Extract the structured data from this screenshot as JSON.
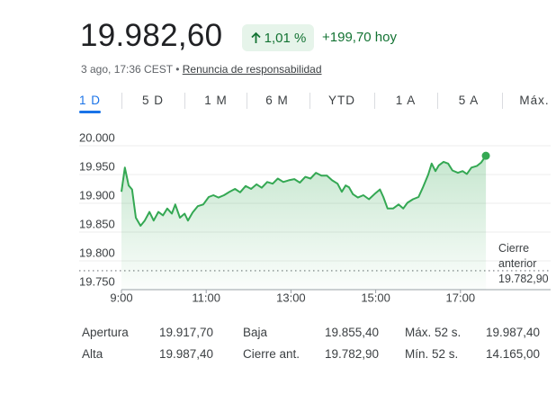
{
  "header": {
    "price": "19.982,60",
    "change_percent": "1,01 %",
    "change_abs": "+199,70 hoy",
    "timestamp": "3 ago, 17:36 CEST",
    "disclaimer": "Renuncia de responsabilidad"
  },
  "tabs": {
    "items": [
      "1 D",
      "5 D",
      "1 M",
      "6 M",
      "YTD",
      "1 A",
      "5 A",
      "Máx."
    ],
    "selected": 0
  },
  "chart_data": {
    "type": "line",
    "color": "#34a853",
    "x": [
      9.0,
      9.08,
      9.17,
      9.25,
      9.34,
      9.45,
      9.55,
      9.66,
      9.76,
      9.87,
      9.98,
      10.08,
      10.19,
      10.27,
      10.38,
      10.49,
      10.57,
      10.68,
      10.8,
      10.93,
      11.06,
      11.17,
      11.29,
      11.42,
      11.55,
      11.68,
      11.8,
      11.93,
      12.06,
      12.19,
      12.31,
      12.44,
      12.57,
      12.69,
      12.82,
      12.95,
      13.08,
      13.21,
      13.34,
      13.46,
      13.59,
      13.72,
      13.85,
      13.97,
      14.1,
      14.2,
      14.29,
      14.37,
      14.46,
      14.58,
      14.71,
      14.84,
      14.97,
      15.1,
      15.18,
      15.28,
      15.41,
      15.54,
      15.65,
      15.75,
      15.88,
      16.01,
      16.11,
      16.24,
      16.32,
      16.41,
      16.49,
      16.6,
      16.71,
      16.81,
      16.94,
      17.05,
      17.15,
      17.26,
      17.39,
      17.49,
      17.6
    ],
    "values": [
      19920,
      19962,
      19931,
      19924,
      19875,
      19861,
      19870,
      19885,
      19870,
      19885,
      19879,
      19891,
      19882,
      19898,
      19875,
      19882,
      19870,
      19884,
      19895,
      19898,
      19911,
      19914,
      19910,
      19914,
      19920,
      19925,
      19919,
      19930,
      19925,
      19933,
      19927,
      19937,
      19934,
      19943,
      19937,
      19940,
      19942,
      19936,
      19946,
      19943,
      19953,
      19948,
      19948,
      19940,
      19934,
      19920,
      19931,
      19928,
      19916,
      19910,
      19914,
      19907,
      19916,
      19924,
      19911,
      19891,
      19891,
      19898,
      19891,
      19901,
      19907,
      19911,
      19927,
      19950,
      19969,
      19956,
      19966,
      19972,
      19969,
      19957,
      19953,
      19956,
      19951,
      19962,
      19965,
      19971,
      19982.6
    ],
    "xlim": [
      9,
      19
    ],
    "xticks": [
      {
        "value": 9,
        "label": "9:00"
      },
      {
        "value": 11,
        "label": "11:00"
      },
      {
        "value": 13,
        "label": "13:00"
      },
      {
        "value": 15,
        "label": "15:00"
      },
      {
        "value": 17,
        "label": "17:00"
      }
    ],
    "ylim": [
      19750,
      20000
    ],
    "yticks": [
      {
        "value": 20000,
        "label": "20.000"
      },
      {
        "value": 19950,
        "label": "19.950"
      },
      {
        "value": 19900,
        "label": "19.900"
      },
      {
        "value": 19850,
        "label": "19.850"
      },
      {
        "value": 19800,
        "label": "19.800"
      },
      {
        "value": 19750,
        "label": "19.750"
      }
    ],
    "grid": true,
    "previous_close": {
      "label": "Cierre anterior",
      "value": 19782.9,
      "value_label": "19.782,90"
    }
  },
  "stats": [
    {
      "label": "Apertura",
      "value": "19.917,70"
    },
    {
      "label": "Baja",
      "value": "19.855,40"
    },
    {
      "label": "Máx. 52 s.",
      "value": "19.987,40"
    },
    {
      "label": "Alta",
      "value": "19.987,40"
    },
    {
      "label": "Cierre ant.",
      "value": "19.782,90"
    },
    {
      "label": "Mín. 52 s.",
      "value": "14.165,00"
    }
  ]
}
